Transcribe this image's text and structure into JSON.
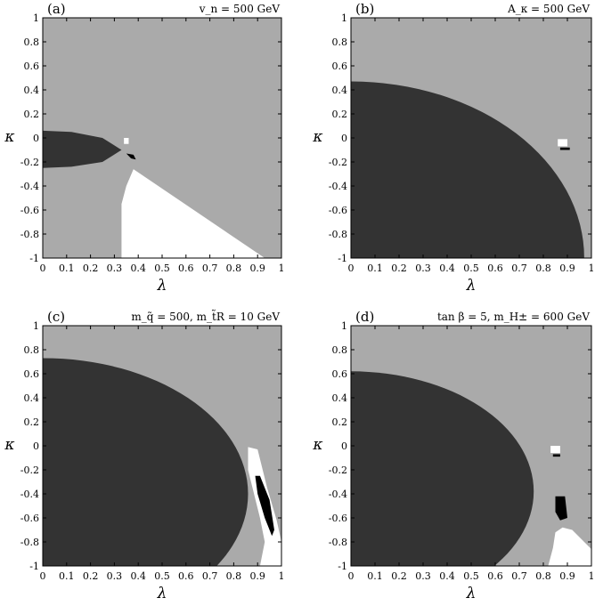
{
  "chart_data": [
    {
      "type": "heatmap",
      "panel_label": "(a)",
      "annotation": "v_n = 500 GeV",
      "xlabel": "λ",
      "ylabel": "κ",
      "xlim": [
        0,
        1
      ],
      "ylim": [
        -1,
        1
      ],
      "xticks": [
        "0",
        "0.1",
        "0.2",
        "0.3",
        "0.4",
        "0.5",
        "0.6",
        "0.7",
        "0.8",
        "0.9",
        "1"
      ],
      "yticks": [
        "1",
        "0.8",
        "0.6",
        "0.4",
        "0.2",
        "0",
        "-0.2",
        "-0.4",
        "-0.6",
        "-0.8",
        "-1"
      ],
      "colors": {
        "background": "#aaaaaa",
        "dark": "#333333",
        "white": "#ffffff",
        "black": "#000000"
      },
      "regions": [
        {
          "color": "dark",
          "shape": "polygon",
          "points": [
            [
              0,
              0.06
            ],
            [
              0.12,
              0.05
            ],
            [
              0.25,
              0.0
            ],
            [
              0.33,
              -0.1
            ],
            [
              0.25,
              -0.2
            ],
            [
              0.12,
              -0.24
            ],
            [
              0,
              -0.25
            ]
          ]
        },
        {
          "color": "white",
          "shape": "polygon",
          "points": [
            [
              0.38,
              -0.26
            ],
            [
              0.93,
              -1.0
            ],
            [
              0.33,
              -1.0
            ],
            [
              0.33,
              -0.55
            ],
            [
              0.35,
              -0.4
            ]
          ]
        },
        {
          "color": "white",
          "shape": "polygon",
          "points": [
            [
              0.34,
              0.0
            ],
            [
              0.36,
              0.0
            ],
            [
              0.36,
              -0.05
            ],
            [
              0.34,
              -0.05
            ]
          ]
        },
        {
          "color": "black",
          "shape": "polygon",
          "points": [
            [
              0.35,
              -0.13
            ],
            [
              0.38,
              -0.14
            ],
            [
              0.39,
              -0.18
            ],
            [
              0.37,
              -0.17
            ]
          ]
        }
      ]
    },
    {
      "type": "heatmap",
      "panel_label": "(b)",
      "annotation": "A_κ = 500 GeV",
      "xlabel": "λ",
      "ylabel": "κ",
      "xlim": [
        0,
        1
      ],
      "ylim": [
        -1,
        1
      ],
      "xticks": [
        "0",
        "0.1",
        "0.2",
        "0.3",
        "0.4",
        "0.5",
        "0.6",
        "0.7",
        "0.8",
        "0.9",
        "1"
      ],
      "yticks": [
        "1",
        "0.8",
        "0.6",
        "0.4",
        "0.2",
        "0",
        "-0.2",
        "-0.4",
        "-0.6",
        "-0.8",
        "-1"
      ],
      "colors": {
        "background": "#aaaaaa",
        "dark": "#333333",
        "white": "#ffffff",
        "black": "#000000"
      },
      "regions": [
        {
          "color": "dark",
          "shape": "ellipse",
          "center": [
            0,
            -1
          ],
          "rx": 0.97,
          "ry": 1.47
        },
        {
          "color": "white",
          "shape": "polygon",
          "points": [
            [
              0.86,
              -0.01
            ],
            [
              0.9,
              -0.01
            ],
            [
              0.9,
              -0.07
            ],
            [
              0.86,
              -0.07
            ]
          ]
        },
        {
          "color": "black",
          "shape": "polygon",
          "points": [
            [
              0.87,
              -0.08
            ],
            [
              0.91,
              -0.08
            ],
            [
              0.91,
              -0.1
            ],
            [
              0.87,
              -0.1
            ]
          ]
        }
      ]
    },
    {
      "type": "heatmap",
      "panel_label": "(c)",
      "annotation": "m_q̃ = 500, m_t̃R = 10 GeV",
      "xlabel": "λ",
      "ylabel": "κ",
      "xlim": [
        0,
        1
      ],
      "ylim": [
        -1,
        1
      ],
      "xticks": [
        "0",
        "0.1",
        "0.2",
        "0.3",
        "0.4",
        "0.5",
        "0.6",
        "0.7",
        "0.8",
        "0.9",
        "1"
      ],
      "yticks": [
        "1",
        "0.8",
        "0.6",
        "0.4",
        "0.2",
        "0",
        "-0.2",
        "-0.4",
        "-0.6",
        "-0.8",
        "-1"
      ],
      "colors": {
        "background": "#aaaaaa",
        "dark": "#333333",
        "white": "#ffffff",
        "black": "#000000"
      },
      "regions": [
        {
          "color": "dark",
          "shape": "ellipse",
          "center": [
            0,
            -0.4
          ],
          "rx": 0.86,
          "ry": 1.13
        },
        {
          "color": "white",
          "shape": "polygon",
          "points": [
            [
              0.86,
              -0.01
            ],
            [
              0.9,
              -0.03
            ],
            [
              0.94,
              -0.35
            ],
            [
              0.98,
              -0.62
            ],
            [
              1.0,
              -0.8
            ],
            [
              1.0,
              -1.0
            ],
            [
              0.91,
              -1.0
            ],
            [
              0.93,
              -0.8
            ],
            [
              0.91,
              -0.6
            ],
            [
              0.86,
              -0.2
            ]
          ]
        },
        {
          "color": "black",
          "shape": "polygon",
          "points": [
            [
              0.89,
              -0.25
            ],
            [
              0.91,
              -0.25
            ],
            [
              0.95,
              -0.45
            ],
            [
              0.97,
              -0.7
            ],
            [
              0.96,
              -0.75
            ],
            [
              0.93,
              -0.6
            ],
            [
              0.9,
              -0.4
            ]
          ]
        }
      ]
    },
    {
      "type": "heatmap",
      "panel_label": "(d)",
      "annotation": "tan β = 5, m_H± = 600 GeV",
      "xlabel": "λ",
      "ylabel": "κ",
      "xlim": [
        0,
        1
      ],
      "ylim": [
        -1,
        1
      ],
      "xticks": [
        "0",
        "0.1",
        "0.2",
        "0.3",
        "0.4",
        "0.5",
        "0.6",
        "0.7",
        "0.8",
        "0.9",
        "1"
      ],
      "yticks": [
        "1",
        "0.8",
        "0.6",
        "0.4",
        "0.2",
        "0",
        "-0.2",
        "-0.4",
        "-0.6",
        "-0.8",
        "-1"
      ],
      "colors": {
        "background": "#aaaaaa",
        "dark": "#333333",
        "white": "#ffffff",
        "black": "#000000"
      },
      "regions": [
        {
          "color": "dark",
          "shape": "ellipse",
          "center": [
            0,
            -0.38
          ],
          "rx": 0.76,
          "ry": 1.0
        },
        {
          "color": "white",
          "shape": "polygon",
          "points": [
            [
              0.85,
              -0.72
            ],
            [
              0.88,
              -0.68
            ],
            [
              0.92,
              -0.7
            ],
            [
              1.0,
              -0.86
            ],
            [
              1.0,
              -1.0
            ],
            [
              0.82,
              -1.0
            ],
            [
              0.84,
              -0.85
            ]
          ]
        },
        {
          "color": "white",
          "shape": "polygon",
          "points": [
            [
              0.83,
              0.0
            ],
            [
              0.87,
              0.0
            ],
            [
              0.87,
              -0.06
            ],
            [
              0.83,
              -0.06
            ]
          ]
        },
        {
          "color": "black",
          "shape": "polygon",
          "points": [
            [
              0.84,
              -0.07
            ],
            [
              0.87,
              -0.07
            ],
            [
              0.87,
              -0.09
            ],
            [
              0.84,
              -0.09
            ]
          ]
        },
        {
          "color": "black",
          "shape": "polygon",
          "points": [
            [
              0.85,
              -0.42
            ],
            [
              0.89,
              -0.42
            ],
            [
              0.9,
              -0.6
            ],
            [
              0.87,
              -0.62
            ],
            [
              0.85,
              -0.55
            ]
          ]
        }
      ]
    }
  ]
}
